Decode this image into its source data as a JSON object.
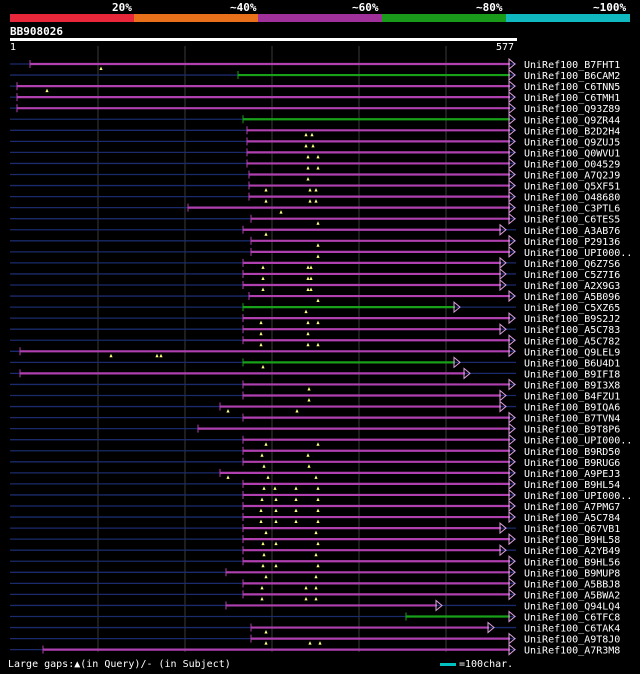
{
  "header": {
    "query_name": "BB908026",
    "query_start": "1",
    "query_end": "577",
    "identity_scale": [
      {
        "label": "20%",
        "color": "#e8283a"
      },
      {
        "label": "~40%",
        "color": "#e8701a"
      },
      {
        "label": "~60%",
        "color": "#a0309a"
      },
      {
        "label": "~80%",
        "color": "#1a9a1a"
      },
      {
        "label": "~100%",
        "color": "#10b8c0"
      }
    ]
  },
  "colors": {
    "magenta": "#b040b0",
    "green": "#18a018",
    "gap": "#1a2a6a",
    "grid": "#3a3a3a",
    "marker": "#ffff80"
  },
  "hits": [
    {
      "name": "UniRef100_B7FHT1",
      "color": "magenta",
      "start": 30,
      "end": 514,
      "markers": [
        101
      ]
    },
    {
      "name": "UniRef100_B6CAM2",
      "color": "green",
      "start": 238,
      "end": 514,
      "markers": []
    },
    {
      "name": "UniRef100_C6TNN5",
      "color": "magenta",
      "start": 17,
      "end": 514,
      "markers": [
        47
      ]
    },
    {
      "name": "UniRef100_C6TMH1",
      "color": "magenta",
      "start": 17,
      "end": 514,
      "markers": []
    },
    {
      "name": "UniRef100_Q93Z89",
      "color": "magenta",
      "start": 17,
      "end": 514,
      "markers": []
    },
    {
      "name": "UniRef100_Q9ZR44",
      "color": "green",
      "start": 243,
      "end": 514,
      "markers": []
    },
    {
      "name": "UniRef100_B2D2H4",
      "color": "magenta",
      "start": 247,
      "end": 514,
      "markers": [
        306,
        312
      ]
    },
    {
      "name": "UniRef100_Q9ZUJ5",
      "color": "magenta",
      "start": 247,
      "end": 514,
      "markers": [
        306,
        313
      ]
    },
    {
      "name": "UniRef100_Q0WVU1",
      "color": "magenta",
      "start": 247,
      "end": 514,
      "markers": [
        308,
        318
      ]
    },
    {
      "name": "UniRef100_O04529",
      "color": "magenta",
      "start": 247,
      "end": 514,
      "markers": [
        308,
        318
      ]
    },
    {
      "name": "UniRef100_A7Q2J9",
      "color": "magenta",
      "start": 249,
      "end": 514,
      "markers": [
        308
      ]
    },
    {
      "name": "UniRef100_Q5XF51",
      "color": "magenta",
      "start": 249,
      "end": 514,
      "markers": [
        266,
        310,
        316
      ]
    },
    {
      "name": "UniRef100_O48680",
      "color": "magenta",
      "start": 249,
      "end": 514,
      "markers": [
        266,
        310,
        316
      ]
    },
    {
      "name": "UniRef100_C3PTL6",
      "color": "magenta",
      "start": 188,
      "end": 514,
      "markers": [
        281
      ]
    },
    {
      "name": "UniRef100_C6TES5",
      "color": "magenta",
      "start": 251,
      "end": 514,
      "markers": [
        318
      ]
    },
    {
      "name": "UniRef100_A3AB76",
      "color": "magenta",
      "start": 243,
      "end": 505,
      "markers": [
        266
      ]
    },
    {
      "name": "UniRef100_P29136",
      "color": "magenta",
      "start": 251,
      "end": 514,
      "markers": [
        318
      ]
    },
    {
      "name": "UniRef100_UPI000..",
      "color": "magenta",
      "start": 251,
      "end": 514,
      "markers": [
        318
      ]
    },
    {
      "name": "UniRef100_Q6Z7S6",
      "color": "magenta",
      "start": 243,
      "end": 505,
      "markers": [
        263,
        308,
        311
      ]
    },
    {
      "name": "UniRef100_C5Z7I6",
      "color": "magenta",
      "start": 243,
      "end": 505,
      "markers": [
        263,
        308,
        311
      ]
    },
    {
      "name": "UniRef100_A2X9G3",
      "color": "magenta",
      "start": 243,
      "end": 505,
      "markers": [
        263,
        308,
        311
      ]
    },
    {
      "name": "UniRef100_A5B096",
      "color": "magenta",
      "start": 249,
      "end": 514,
      "markers": [
        318
      ]
    },
    {
      "name": "UniRef100_C5XZ65",
      "color": "green",
      "start": 243,
      "end": 459,
      "markers": [
        306
      ]
    },
    {
      "name": "UniRef100_B9S2J2",
      "color": "magenta",
      "start": 243,
      "end": 514,
      "markers": [
        261,
        308,
        318
      ]
    },
    {
      "name": "UniRef100_A5C783",
      "color": "magenta",
      "start": 243,
      "end": 505,
      "markers": [
        261,
        308
      ]
    },
    {
      "name": "UniRef100_A5C782",
      "color": "magenta",
      "start": 243,
      "end": 514,
      "markers": [
        261,
        308,
        318
      ]
    },
    {
      "name": "UniRef100_Q9LEL9",
      "color": "magenta",
      "start": 20,
      "end": 514,
      "markers": [
        111,
        157,
        161
      ]
    },
    {
      "name": "UniRef100_B6U4D1",
      "color": "green",
      "start": 243,
      "end": 459,
      "markers": [
        263
      ]
    },
    {
      "name": "UniRef100_B9IFI8",
      "color": "magenta",
      "start": 20,
      "end": 469,
      "markers": []
    },
    {
      "name": "UniRef100_B9I3X8",
      "color": "magenta",
      "start": 243,
      "end": 514,
      "markers": [
        309
      ]
    },
    {
      "name": "UniRef100_B4FZU1",
      "color": "magenta",
      "start": 243,
      "end": 505,
      "markers": [
        309
      ]
    },
    {
      "name": "UniRef100_B9IQA6",
      "color": "magenta",
      "start": 220,
      "end": 505,
      "markers": [
        228,
        297
      ]
    },
    {
      "name": "UniRef100_B7TVN4",
      "color": "magenta",
      "start": 243,
      "end": 514,
      "markers": []
    },
    {
      "name": "UniRef100_B9T8P6",
      "color": "magenta",
      "start": 198,
      "end": 514,
      "markers": []
    },
    {
      "name": "UniRef100_UPI000..",
      "color": "magenta",
      "start": 243,
      "end": 514,
      "markers": [
        266,
        318
      ]
    },
    {
      "name": "UniRef100_B9RD50",
      "color": "magenta",
      "start": 243,
      "end": 514,
      "markers": [
        262,
        308
      ]
    },
    {
      "name": "UniRef100_B9RUG6",
      "color": "magenta",
      "start": 243,
      "end": 514,
      "markers": [
        264,
        309
      ]
    },
    {
      "name": "UniRef100_A9PEJ3",
      "color": "magenta",
      "start": 220,
      "end": 514,
      "markers": [
        228,
        268,
        316
      ]
    },
    {
      "name": "UniRef100_B9HL54",
      "color": "magenta",
      "start": 243,
      "end": 514,
      "markers": [
        264,
        275,
        296,
        318
      ]
    },
    {
      "name": "UniRef100_UPI000..",
      "color": "magenta",
      "start": 243,
      "end": 514,
      "markers": [
        262,
        276,
        296,
        318
      ]
    },
    {
      "name": "UniRef100_A7PMG7",
      "color": "magenta",
      "start": 243,
      "end": 514,
      "markers": [
        261,
        276,
        296,
        318
      ]
    },
    {
      "name": "UniRef100_A5C784",
      "color": "magenta",
      "start": 243,
      "end": 514,
      "markers": [
        261,
        276,
        296,
        318
      ]
    },
    {
      "name": "UniRef100_Q67VB1",
      "color": "magenta",
      "start": 243,
      "end": 505,
      "markers": [
        266,
        316
      ]
    },
    {
      "name": "UniRef100_B9HL58",
      "color": "magenta",
      "start": 243,
      "end": 514,
      "markers": [
        263,
        276,
        318
      ]
    },
    {
      "name": "UniRef100_A2YB49",
      "color": "magenta",
      "start": 243,
      "end": 505,
      "markers": [
        264,
        316
      ]
    },
    {
      "name": "UniRef100_B9HL56",
      "color": "magenta",
      "start": 243,
      "end": 514,
      "markers": [
        263,
        276,
        318
      ]
    },
    {
      "name": "UniRef100_B9MUP8",
      "color": "magenta",
      "start": 226,
      "end": 514,
      "markers": [
        266,
        316
      ]
    },
    {
      "name": "UniRef100_A5BBJ8",
      "color": "magenta",
      "start": 243,
      "end": 514,
      "markers": [
        262,
        306,
        316
      ]
    },
    {
      "name": "UniRef100_A5BWA2",
      "color": "magenta",
      "start": 243,
      "end": 514,
      "markers": [
        262,
        306,
        316
      ]
    },
    {
      "name": "UniRef100_Q94LQ4",
      "color": "magenta",
      "start": 226,
      "end": 441,
      "markers": []
    },
    {
      "name": "UniRef100_C6TFC8",
      "color": "green",
      "start": 406,
      "end": 514,
      "markers": []
    },
    {
      "name": "UniRef100_C6TAK4",
      "color": "magenta",
      "start": 251,
      "end": 493,
      "markers": [
        266
      ]
    },
    {
      "name": "UniRef100_A9T8J0",
      "color": "magenta",
      "start": 251,
      "end": 514,
      "markers": [
        266,
        310,
        320
      ]
    },
    {
      "name": "UniRef100_A7R3M8",
      "color": "magenta",
      "start": 43,
      "end": 514,
      "markers": []
    }
  ],
  "footer": {
    "legend_gaps": "Large gaps:▲(in Query)/‐ (in Subject)",
    "legend_scale": "=100char."
  }
}
